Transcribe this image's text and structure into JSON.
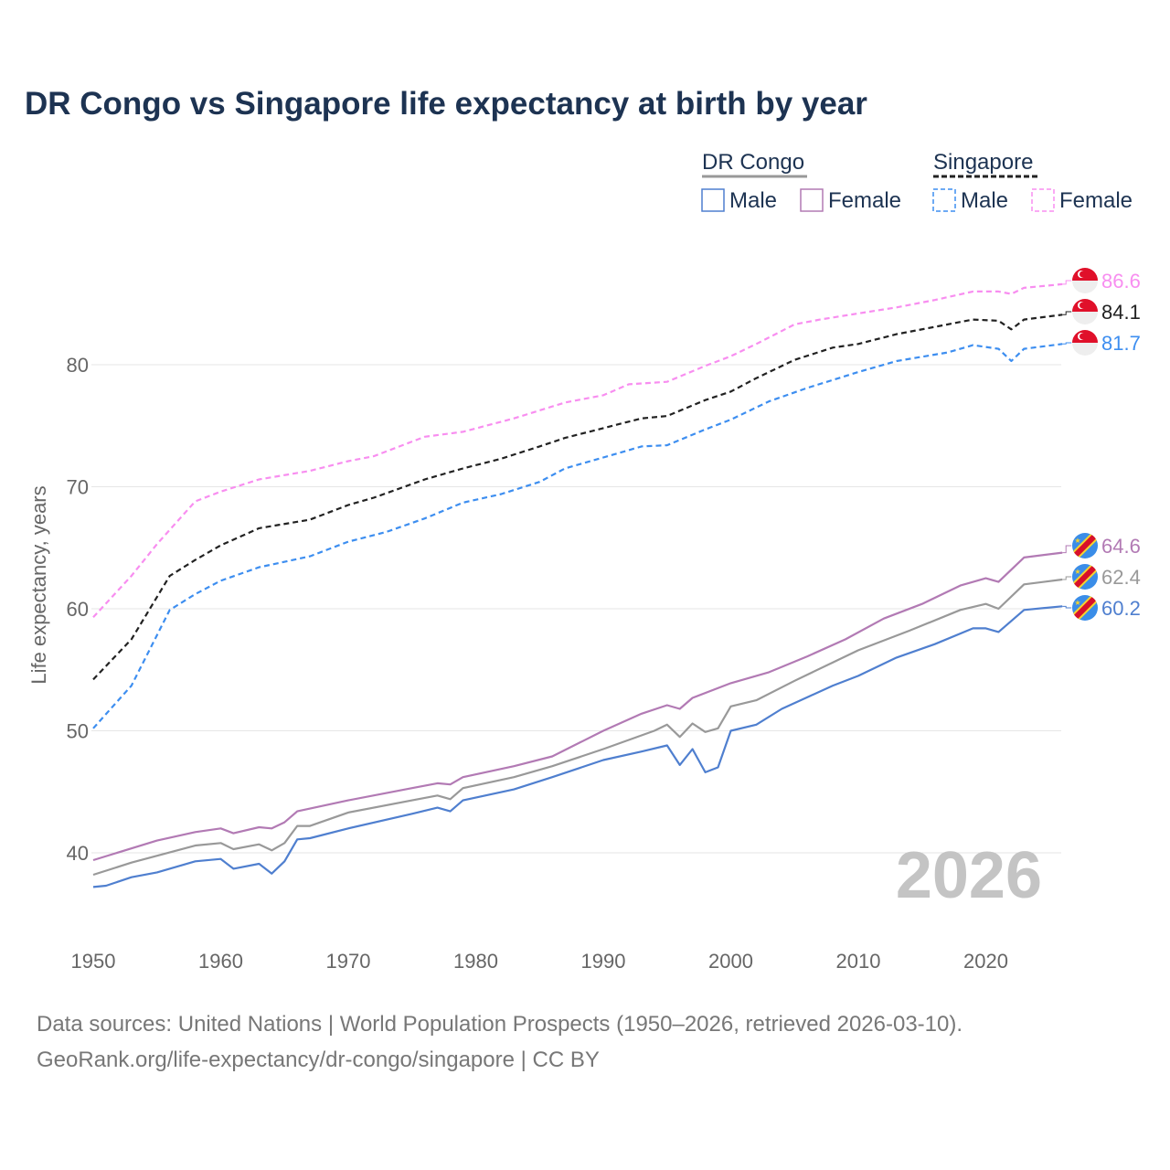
{
  "title": "DR Congo vs Singapore life expectancy at birth by year",
  "legend": {
    "groups": [
      {
        "name": "DR Congo",
        "line_color": "#999999",
        "dash": false,
        "items": [
          {
            "label": "Male",
            "color": "#4f7fcf"
          },
          {
            "label": "Female",
            "color": "#b27ab4"
          }
        ]
      },
      {
        "name": "Singapore",
        "line_color": "#222222",
        "dash": true,
        "items": [
          {
            "label": "Male",
            "color": "#3d8ef0"
          },
          {
            "label": "Female",
            "color": "#f88ef0"
          }
        ]
      }
    ]
  },
  "watermark_year": "2026",
  "footer": {
    "source": "Data sources: United Nations | World Population Prospects (1950–2026, retrieved 2026-03-10).",
    "link": "GeoRank.org/life-expectancy/dr-congo/singapore | CC BY"
  },
  "chart_data": {
    "type": "line",
    "title": "DR Congo vs Singapore life expectancy at birth by year",
    "xlabel": "",
    "ylabel": "Life expectancy, years",
    "xlim": [
      1950,
      2026
    ],
    "ylim": [
      34.5,
      89
    ],
    "xticks": [
      1950,
      1960,
      1970,
      1980,
      1990,
      2000,
      2010,
      2020
    ],
    "yticks": [
      40,
      50,
      60,
      70,
      80
    ],
    "grid": true,
    "legend_position": "top-right",
    "series": [
      {
        "name": "Singapore Female",
        "country": "Singapore",
        "color": "#f88ef0",
        "dash": true,
        "end_label": "86.6",
        "flag": "singapore",
        "x": [
          1950,
          1953,
          1955,
          1958,
          1960,
          1963,
          1967,
          1970,
          1972,
          1976,
          1979,
          1983,
          1987,
          1990,
          1992,
          1995,
          1998,
          2000,
          2002,
          2005,
          2007,
          2010,
          2013,
          2016,
          2019,
          2021,
          2022,
          2023,
          2026
        ],
        "y": [
          59.3,
          62.7,
          65.3,
          68.8,
          69.6,
          70.6,
          71.3,
          72.1,
          72.5,
          74.1,
          74.5,
          75.6,
          76.9,
          77.5,
          78.4,
          78.6,
          79.9,
          80.7,
          81.7,
          83.3,
          83.7,
          84.2,
          84.7,
          85.3,
          86.0,
          86.0,
          85.8,
          86.3,
          86.6
        ]
      },
      {
        "name": "Singapore Total",
        "country": "Singapore",
        "color": "#222222",
        "dash": true,
        "end_label": "84.1",
        "flag": "singapore",
        "x": [
          1950,
          1953,
          1956,
          1958,
          1960,
          1963,
          1967,
          1970,
          1972,
          1976,
          1979,
          1982,
          1985,
          1987,
          1990,
          1993,
          1995,
          1998,
          2000,
          2002,
          2005,
          2008,
          2010,
          2013,
          2016,
          2019,
          2021,
          2022,
          2023,
          2026
        ],
        "y": [
          54.2,
          57.5,
          62.7,
          64.0,
          65.2,
          66.6,
          67.3,
          68.5,
          69.1,
          70.6,
          71.5,
          72.3,
          73.3,
          74.0,
          74.8,
          75.6,
          75.8,
          77.1,
          77.8,
          78.9,
          80.4,
          81.4,
          81.7,
          82.5,
          83.1,
          83.7,
          83.6,
          82.9,
          83.7,
          84.1
        ]
      },
      {
        "name": "Singapore Male",
        "country": "Singapore",
        "color": "#3d8ef0",
        "dash": true,
        "end_label": "81.7",
        "flag": "singapore",
        "x": [
          1950,
          1953,
          1956,
          1958,
          1960,
          1963,
          1967,
          1970,
          1973,
          1976,
          1979,
          1982,
          1985,
          1987,
          1990,
          1993,
          1995,
          1998,
          2000,
          2003,
          2006,
          2010,
          2013,
          2017,
          2019,
          2021,
          2022,
          2023,
          2026
        ],
        "y": [
          50.2,
          53.7,
          59.9,
          61.2,
          62.3,
          63.4,
          64.3,
          65.5,
          66.3,
          67.4,
          68.7,
          69.4,
          70.4,
          71.5,
          72.4,
          73.3,
          73.4,
          74.7,
          75.5,
          77.0,
          78.1,
          79.4,
          80.3,
          81.0,
          81.6,
          81.3,
          80.3,
          81.3,
          81.7
        ]
      },
      {
        "name": "DR Congo Female",
        "country": "DR Congo",
        "color": "#b27ab4",
        "dash": false,
        "end_label": "64.6",
        "flag": "drcongo",
        "x": [
          1950,
          1955,
          1958,
          1960,
          1961,
          1963,
          1964,
          1965,
          1966,
          1970,
          1975,
          1977,
          1978,
          1979,
          1983,
          1986,
          1990,
          1993,
          1995,
          1996,
          1997,
          2000,
          2003,
          2006,
          2009,
          2012,
          2015,
          2018,
          2020,
          2021,
          2023,
          2026
        ],
        "y": [
          39.4,
          41.0,
          41.7,
          42.0,
          41.6,
          42.1,
          42.0,
          42.5,
          43.4,
          44.3,
          45.3,
          45.7,
          45.6,
          46.2,
          47.1,
          47.9,
          50.0,
          51.4,
          52.1,
          51.8,
          52.7,
          53.9,
          54.8,
          56.1,
          57.5,
          59.2,
          60.4,
          61.9,
          62.5,
          62.2,
          64.2,
          64.6
        ]
      },
      {
        "name": "DR Congo Total",
        "country": "DR Congo",
        "color": "#999999",
        "dash": false,
        "end_label": "62.4",
        "flag": "drcongo",
        "x": [
          1950,
          1953,
          1958,
          1960,
          1961,
          1963,
          1964,
          1965,
          1966,
          1967,
          1970,
          1975,
          1977,
          1978,
          1979,
          1983,
          1986,
          1990,
          1994,
          1995,
          1996,
          1997,
          1998,
          1999,
          2000,
          2002,
          2005,
          2008,
          2010,
          2014,
          2018,
          2020,
          2021,
          2023,
          2026
        ],
        "y": [
          38.2,
          39.2,
          40.6,
          40.8,
          40.3,
          40.7,
          40.2,
          40.8,
          42.2,
          42.2,
          43.3,
          44.3,
          44.7,
          44.4,
          45.3,
          46.2,
          47.1,
          48.5,
          50.0,
          50.5,
          49.5,
          50.6,
          49.9,
          50.2,
          52.0,
          52.5,
          54.1,
          55.6,
          56.6,
          58.2,
          59.9,
          60.4,
          60.0,
          62.0,
          62.4
        ]
      },
      {
        "name": "DR Congo Male",
        "country": "DR Congo",
        "color": "#4f7fcf",
        "dash": false,
        "end_label": "60.2",
        "flag": "drcongo",
        "x": [
          1950,
          1951,
          1953,
          1955,
          1958,
          1960,
          1961,
          1963,
          1964,
          1965,
          1966,
          1967,
          1970,
          1975,
          1977,
          1978,
          1979,
          1983,
          1986,
          1990,
          1993,
          1995,
          1996,
          1997,
          1998,
          1999,
          2000,
          2002,
          2004,
          2008,
          2010,
          2013,
          2016,
          2019,
          2020,
          2021,
          2023,
          2026
        ],
        "y": [
          37.2,
          37.3,
          38.0,
          38.4,
          39.3,
          39.5,
          38.7,
          39.1,
          38.3,
          39.3,
          41.1,
          41.2,
          42.0,
          43.2,
          43.7,
          43.4,
          44.3,
          45.2,
          46.2,
          47.6,
          48.3,
          48.8,
          47.2,
          48.5,
          46.6,
          47.0,
          50.0,
          50.5,
          51.8,
          53.7,
          54.5,
          56.0,
          57.1,
          58.4,
          58.4,
          58.1,
          59.9,
          60.2
        ]
      }
    ]
  }
}
